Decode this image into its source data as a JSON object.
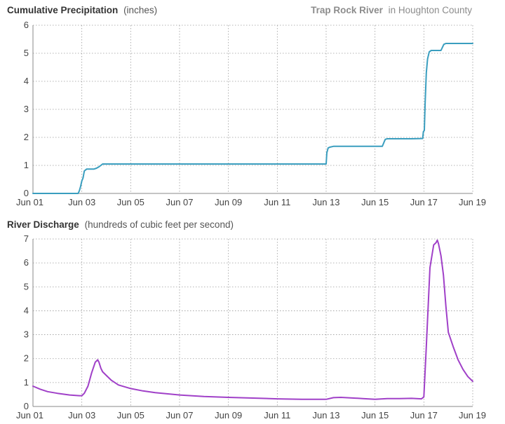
{
  "header": {
    "precip_title_bold": "Cumulative Precipitation",
    "precip_title_unit": "(inches)",
    "location_bold": "Trap Rock River",
    "location_rest": "in Houghton County",
    "discharge_title_bold": "River Discharge",
    "discharge_title_unit": "(hundreds of cubic feet per second)"
  },
  "chart_data": [
    {
      "type": "line",
      "title": "Cumulative Precipitation (inches)",
      "subtitle": "Trap Rock River in Houghton County",
      "x_tick_labels": [
        "Jun 01",
        "Jun 03",
        "Jun 05",
        "Jun 07",
        "Jun 09",
        "Jun 11",
        "Jun 13",
        "Jun 15",
        "Jun 17",
        "Jun 19"
      ],
      "x_tick_days": [
        1,
        3,
        5,
        7,
        9,
        11,
        13,
        15,
        17,
        19
      ],
      "xlim": [
        1,
        19
      ],
      "ylim": [
        0,
        6
      ],
      "y_ticks": [
        0,
        1,
        2,
        3,
        4,
        5,
        6
      ],
      "grid": true,
      "color": "#3a9ebf",
      "series": [
        {
          "x": [
            1,
            2.85,
            2.9,
            2.95,
            3.0,
            3.05,
            3.1,
            3.2,
            3.5,
            3.6,
            3.7,
            3.78,
            3.85,
            5,
            8,
            11,
            13.0,
            13.03,
            13.08,
            13.15,
            13.3,
            13.6,
            14.5,
            15.3,
            15.38,
            15.42,
            15.5,
            16.5,
            16.95,
            16.98,
            17.02,
            17.05,
            17.1,
            17.15,
            17.22,
            17.3,
            17.5,
            17.7,
            17.78,
            17.82,
            17.9,
            18.3,
            19
          ],
          "y": [
            0,
            0,
            0.1,
            0.25,
            0.45,
            0.55,
            0.8,
            0.87,
            0.87,
            0.9,
            0.95,
            1.0,
            1.05,
            1.05,
            1.05,
            1.05,
            1.05,
            1.45,
            1.62,
            1.65,
            1.68,
            1.68,
            1.68,
            1.68,
            1.85,
            1.93,
            1.95,
            1.95,
            1.96,
            2.2,
            2.25,
            3.2,
            4.3,
            4.8,
            5.05,
            5.1,
            5.1,
            5.1,
            5.25,
            5.32,
            5.35,
            5.35,
            5.35
          ]
        }
      ]
    },
    {
      "type": "line",
      "title": "River Discharge (hundreds of cubic feet per second)",
      "x_tick_labels": [
        "Jun 01",
        "Jun 03",
        "Jun 05",
        "Jun 07",
        "Jun 09",
        "Jun 11",
        "Jun 13",
        "Jun 15",
        "Jun 17",
        "Jun 19"
      ],
      "x_tick_days": [
        1,
        3,
        5,
        7,
        9,
        11,
        13,
        15,
        17,
        19
      ],
      "xlim": [
        1,
        19
      ],
      "ylim": [
        0,
        7
      ],
      "y_ticks": [
        0,
        1,
        2,
        3,
        4,
        5,
        6,
        7
      ],
      "grid": true,
      "color": "#a040c8",
      "series": [
        {
          "x": [
            1,
            1.3,
            1.6,
            2.0,
            2.5,
            2.9,
            3.0,
            3.1,
            3.25,
            3.4,
            3.55,
            3.65,
            3.7,
            3.78,
            3.85,
            4.0,
            4.2,
            4.5,
            5.0,
            5.5,
            6.0,
            7.0,
            8.0,
            9.0,
            10.0,
            11.0,
            12.0,
            13.0,
            13.3,
            13.6,
            14.0,
            14.5,
            15.0,
            15.5,
            16.0,
            16.5,
            16.9,
            17.0,
            17.1,
            17.25,
            17.4,
            17.5,
            17.55,
            17.6,
            17.7,
            17.8,
            17.9,
            18.0,
            18.2,
            18.4,
            18.6,
            18.8,
            19.0
          ],
          "y": [
            0.85,
            0.72,
            0.62,
            0.55,
            0.48,
            0.45,
            0.45,
            0.55,
            0.85,
            1.4,
            1.85,
            1.95,
            1.85,
            1.6,
            1.45,
            1.3,
            1.1,
            0.9,
            0.75,
            0.65,
            0.58,
            0.48,
            0.42,
            0.38,
            0.35,
            0.32,
            0.3,
            0.3,
            0.37,
            0.38,
            0.36,
            0.33,
            0.3,
            0.33,
            0.33,
            0.34,
            0.32,
            0.4,
            2.5,
            5.8,
            6.75,
            6.85,
            6.95,
            6.8,
            6.3,
            5.5,
            4.2,
            3.1,
            2.5,
            1.95,
            1.55,
            1.25,
            1.05
          ]
        }
      ]
    }
  ]
}
